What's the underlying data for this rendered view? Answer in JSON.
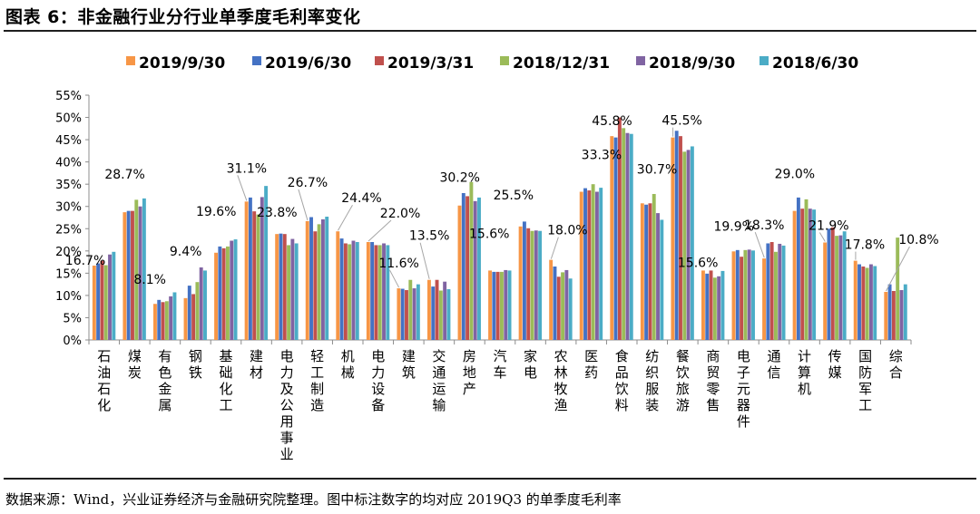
{
  "title": "图表 6：非金融行业分行业单季度毛利率变化",
  "source": "数据来源：Wind，兴业证券经济与金融研究院整理。图中标注数字的均对应 2019Q3 的单季度毛利率",
  "chart_data": {
    "type": "bar",
    "ylim": [
      0,
      55
    ],
    "yticks": [
      "0%",
      "5%",
      "10%",
      "15%",
      "20%",
      "25%",
      "30%",
      "35%",
      "40%",
      "45%",
      "50%",
      "55%"
    ],
    "grid": false,
    "legend_position": "top",
    "categories": [
      "石油石化",
      "煤炭",
      "有色金属",
      "钢铁",
      "基础化工",
      "建材",
      "电力及公用事业",
      "轻工制造",
      "机械",
      "电力设备",
      "建筑",
      "交通运输",
      "房地产",
      "汽车",
      "家电",
      "农林牧渔",
      "医药",
      "食品饮料",
      "纺织服装",
      "餐饮旅游",
      "商贸零售",
      "电子元器件",
      "通信",
      "计算机",
      "传媒",
      "国防军工",
      "综合"
    ],
    "series": [
      {
        "name": "2019/9/30",
        "color": "#f79646",
        "values": [
          16.7,
          28.7,
          8.1,
          9.4,
          19.6,
          31.1,
          23.8,
          26.7,
          24.4,
          22.0,
          11.6,
          13.5,
          30.2,
          15.6,
          25.5,
          18.0,
          33.3,
          45.8,
          30.7,
          45.5,
          15.6,
          19.9,
          18.3,
          29.0,
          21.9,
          17.8,
          10.8
        ]
      },
      {
        "name": "2019/6/30",
        "color": "#4472c4",
        "values": [
          17.2,
          29.0,
          9.0,
          12.2,
          21.0,
          32.0,
          23.9,
          27.6,
          22.8,
          22.0,
          11.5,
          12.0,
          33.0,
          15.3,
          26.6,
          16.5,
          34.1,
          45.5,
          30.4,
          47.0,
          14.9,
          20.2,
          21.7,
          32.0,
          25.0,
          17.0,
          12.5
        ]
      },
      {
        "name": "2019/3/31",
        "color": "#c0504d",
        "values": [
          17.8,
          29.0,
          8.5,
          10.3,
          20.6,
          28.9,
          23.8,
          24.4,
          21.7,
          21.3,
          11.2,
          13.5,
          32.3,
          15.3,
          25.1,
          14.2,
          33.6,
          50.0,
          30.7,
          45.8,
          15.6,
          18.7,
          22.0,
          29.5,
          25.3,
          16.5,
          11.0
        ]
      },
      {
        "name": "2018/12/31",
        "color": "#9bbb59",
        "values": [
          16.8,
          31.5,
          8.7,
          13.0,
          21.0,
          28.2,
          21.3,
          26.0,
          21.5,
          21.3,
          13.5,
          11.1,
          35.5,
          15.3,
          24.5,
          15.2,
          35.0,
          47.6,
          32.8,
          42.3,
          14.0,
          20.2,
          19.8,
          31.6,
          23.4,
          16.2,
          23.0
        ]
      },
      {
        "name": "2018/9/30",
        "color": "#8064a2",
        "values": [
          19.2,
          30.0,
          9.8,
          16.3,
          22.3,
          32.1,
          22.7,
          27.1,
          22.3,
          21.7,
          11.6,
          13.1,
          31.2,
          15.7,
          24.6,
          15.7,
          33.3,
          46.5,
          28.5,
          42.7,
          14.3,
          20.3,
          21.6,
          29.5,
          23.5,
          17.0,
          11.2
        ]
      },
      {
        "name": "2018/6/30",
        "color": "#4bacc6",
        "values": [
          19.8,
          31.8,
          10.7,
          15.6,
          22.6,
          34.6,
          21.7,
          27.7,
          22.0,
          21.3,
          12.5,
          11.4,
          32.0,
          15.6,
          24.5,
          13.8,
          34.2,
          46.3,
          27.0,
          43.5,
          15.5,
          20.1,
          21.2,
          29.3,
          24.4,
          16.6,
          12.5
        ]
      }
    ],
    "data_labels": [
      "16.7%",
      "28.7%",
      "8.1%",
      "9.4%",
      "19.6%",
      "31.1%",
      "23.8%",
      "26.7%",
      "24.4%",
      "22.0%",
      "11.6%",
      "13.5%",
      "30.2%",
      "15.6%",
      "25.5%",
      "18.0%",
      "33.3%",
      "45.8%",
      "30.7%",
      "45.5%",
      "15.6%",
      "19.9%",
      "18.3%",
      "29.0%",
      "21.9%",
      "17.8%",
      "10.8%"
    ]
  }
}
